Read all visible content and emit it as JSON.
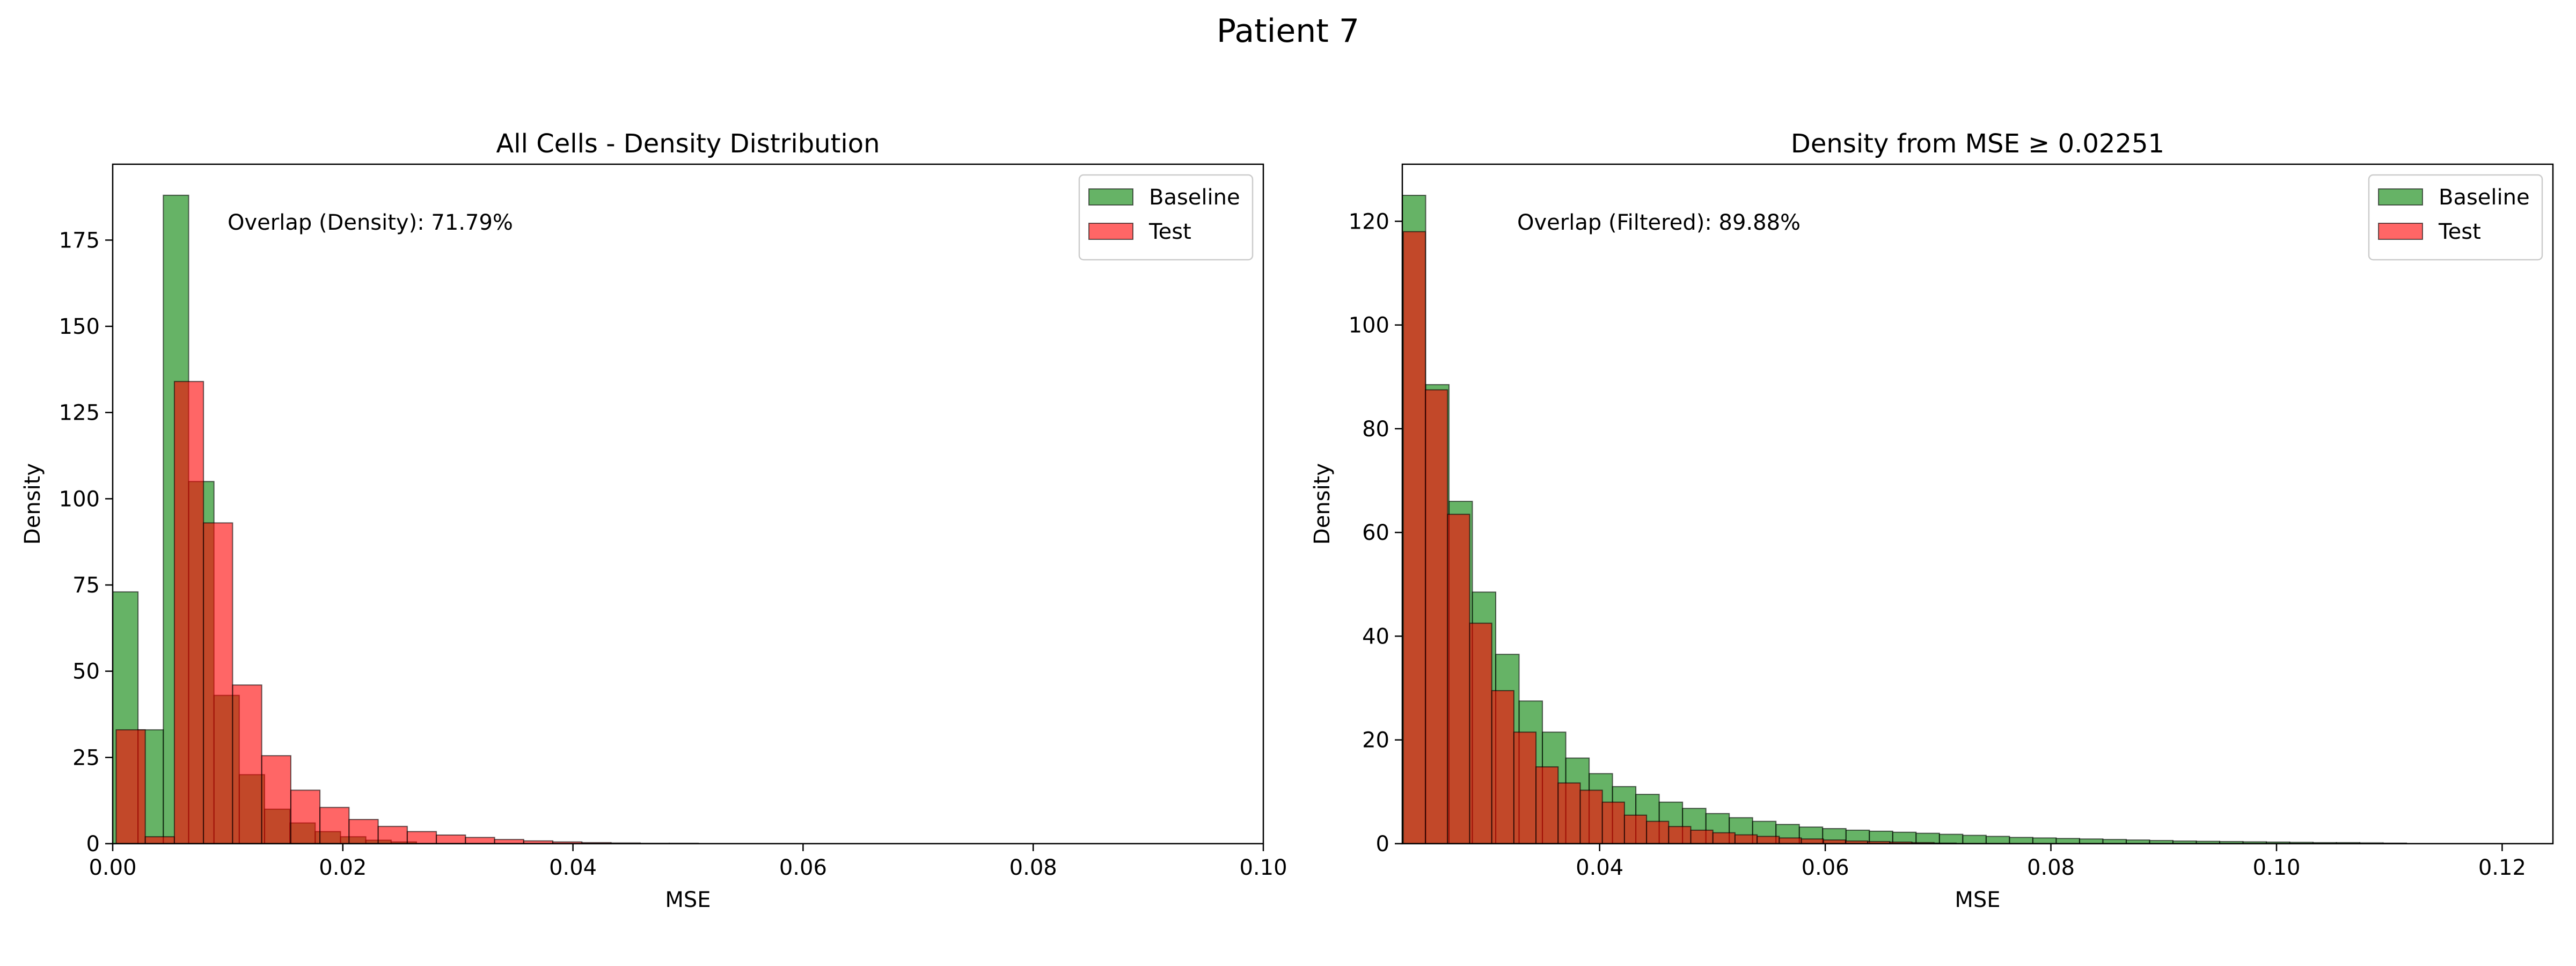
{
  "figure": {
    "title": "Patient 7"
  },
  "colors": {
    "baseline": "#008000",
    "test": "#ff0000",
    "edge": "#000000"
  },
  "chart_data": [
    {
      "type": "histogram",
      "title": "All Cells - Density Distribution",
      "xlabel": "MSE",
      "ylabel": "Density",
      "xlim": [
        0.0,
        0.1
      ],
      "ylim": [
        0,
        197
      ],
      "xticks": [
        0.0,
        0.02,
        0.04,
        0.06,
        0.08,
        0.1
      ],
      "xtick_labels": [
        "0.00",
        "0.02",
        "0.04",
        "0.06",
        "0.08",
        "0.10"
      ],
      "yticks": [
        0,
        25,
        50,
        75,
        100,
        125,
        150,
        175
      ],
      "ytick_labels": [
        "0",
        "25",
        "50",
        "75",
        "100",
        "125",
        "150",
        "175"
      ],
      "legend": {
        "position": "top-right",
        "entries": [
          "Baseline",
          "Test"
        ]
      },
      "annotation": "Overlap (Density): 71.79%",
      "grid": false,
      "series": [
        {
          "name": "Baseline",
          "bin_start": 0.0,
          "bin_width": 0.0022,
          "values": [
            73,
            33,
            188,
            105,
            43,
            20,
            10,
            6,
            3.5,
            2,
            1,
            0.5
          ]
        },
        {
          "name": "Test",
          "bin_start": 0.0003,
          "bin_width": 0.00253,
          "values": [
            33,
            2,
            134,
            93,
            46,
            25.5,
            15.5,
            10.5,
            7,
            5,
            3.5,
            2.5,
            1.8,
            1.2,
            0.8,
            0.5,
            0.3,
            0.2,
            0.1,
            0.1
          ]
        }
      ]
    },
    {
      "type": "histogram",
      "title": "Density from MSE ≥ 0.02251",
      "xlabel": "MSE",
      "ylabel": "Density",
      "xlim": [
        0.02251,
        0.1245
      ],
      "ylim": [
        0,
        131
      ],
      "xticks": [
        0.04,
        0.06,
        0.08,
        0.1,
        0.12
      ],
      "xtick_labels": [
        "0.04",
        "0.06",
        "0.08",
        "0.10",
        "0.12"
      ],
      "yticks": [
        0,
        20,
        40,
        60,
        80,
        100,
        120
      ],
      "ytick_labels": [
        "0",
        "20",
        "40",
        "60",
        "80",
        "100",
        "120"
      ],
      "legend": {
        "position": "top-right",
        "entries": [
          "Baseline",
          "Test"
        ]
      },
      "annotation": "Overlap (Filtered): 89.88%",
      "grid": false,
      "series": [
        {
          "name": "Baseline",
          "bin_start": 0.02251,
          "bin_width": 0.00207,
          "values": [
            125,
            88.5,
            66,
            48.5,
            36.5,
            27.5,
            21.5,
            16.5,
            13.5,
            11,
            9.5,
            8,
            6.8,
            5.8,
            5,
            4.3,
            3.7,
            3.2,
            2.9,
            2.6,
            2.4,
            2.2,
            2.0,
            1.8,
            1.6,
            1.4,
            1.2,
            1.1,
            1.0,
            0.9,
            0.8,
            0.7,
            0.6,
            0.5,
            0.45,
            0.4,
            0.35,
            0.3,
            0.25,
            0.2,
            0.2,
            0.15,
            0.1
          ]
        },
        {
          "name": "Test",
          "bin_start": 0.0226,
          "bin_width": 0.00196,
          "values": [
            118,
            87.5,
            63.5,
            42.5,
            29.5,
            21.5,
            14.8,
            11.7,
            10.3,
            8,
            5.5,
            4.3,
            3.3,
            2.6,
            2.1,
            1.7,
            1.4,
            1.1,
            0.9,
            0.7,
            0.5,
            0.4,
            0.3,
            0.2,
            0.1
          ]
        }
      ]
    }
  ]
}
